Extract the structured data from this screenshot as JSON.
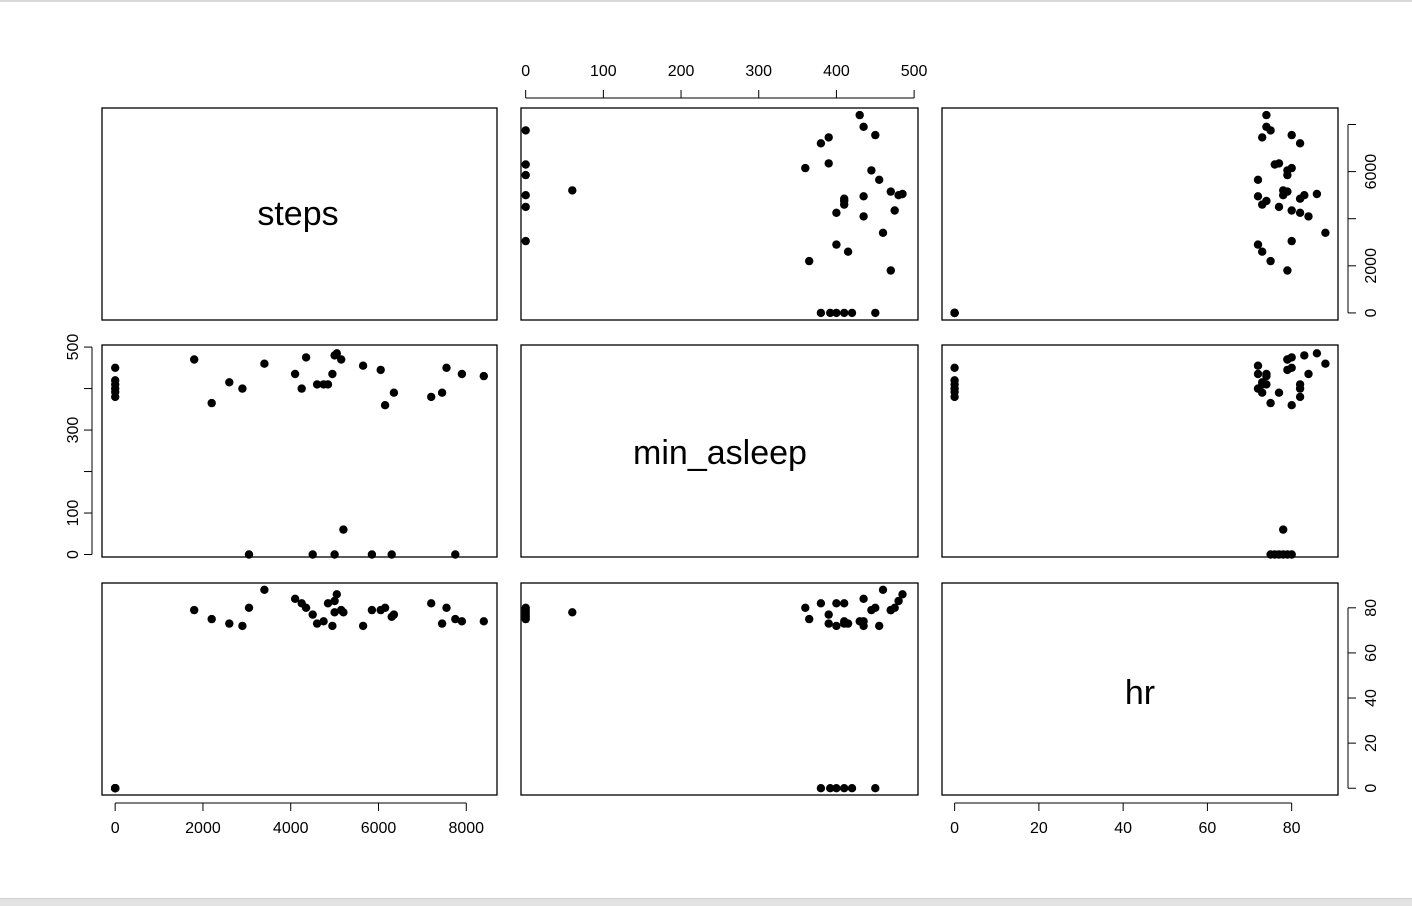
{
  "chart_data": {
    "type": "scatter",
    "variables": [
      "steps",
      "min_asleep",
      "hr"
    ],
    "point_color": "#000000",
    "axes": {
      "steps": {
        "range": [
          -300,
          8700
        ],
        "ticks": [
          0,
          2000,
          4000,
          6000,
          8000
        ]
      },
      "min_asleep": {
        "range": [
          -6,
          505
        ],
        "ticks": [
          0,
          100,
          200,
          300,
          400,
          500
        ],
        "left_ticks": [
          0,
          100,
          300,
          500
        ],
        "left_minor": [
          200,
          400
        ]
      },
      "hr": {
        "range": [
          -3,
          91
        ],
        "ticks": [
          0,
          20,
          40,
          60,
          80
        ]
      },
      "steps_right": {
        "ticks": [
          0,
          2000,
          4000,
          6000,
          8000
        ],
        "labeled": [
          0,
          2000,
          6000
        ]
      }
    },
    "observations": [
      {
        "steps": 0,
        "min_asleep": 380,
        "hr": 0
      },
      {
        "steps": 0,
        "min_asleep": 400,
        "hr": 0
      },
      {
        "steps": 0,
        "min_asleep": 410,
        "hr": 0
      },
      {
        "steps": 0,
        "min_asleep": 420,
        "hr": 0
      },
      {
        "steps": 0,
        "min_asleep": 450,
        "hr": 0
      },
      {
        "steps": 0,
        "min_asleep": 392,
        "hr": 0
      },
      {
        "steps": 1800,
        "min_asleep": 470,
        "hr": 79
      },
      {
        "steps": 2200,
        "min_asleep": 365,
        "hr": 75
      },
      {
        "steps": 2600,
        "min_asleep": 415,
        "hr": 73
      },
      {
        "steps": 2900,
        "min_asleep": 400,
        "hr": 72
      },
      {
        "steps": 3050,
        "min_asleep": 0,
        "hr": 80
      },
      {
        "steps": 3400,
        "min_asleep": 460,
        "hr": 88
      },
      {
        "steps": 4100,
        "min_asleep": 435,
        "hr": 84
      },
      {
        "steps": 4250,
        "min_asleep": 400,
        "hr": 82
      },
      {
        "steps": 4350,
        "min_asleep": 475,
        "hr": 80
      },
      {
        "steps": 4500,
        "min_asleep": 0,
        "hr": 77
      },
      {
        "steps": 4600,
        "min_asleep": 410,
        "hr": 73
      },
      {
        "steps": 4750,
        "min_asleep": 410,
        "hr": 74
      },
      {
        "steps": 4850,
        "min_asleep": 410,
        "hr": 82
      },
      {
        "steps": 4950,
        "min_asleep": 435,
        "hr": 72
      },
      {
        "steps": 5000,
        "min_asleep": 480,
        "hr": 83
      },
      {
        "steps": 5000,
        "min_asleep": 0,
        "hr": 78
      },
      {
        "steps": 5050,
        "min_asleep": 485,
        "hr": 86
      },
      {
        "steps": 5150,
        "min_asleep": 470,
        "hr": 79
      },
      {
        "steps": 5200,
        "min_asleep": 60,
        "hr": 78
      },
      {
        "steps": 5650,
        "min_asleep": 455,
        "hr": 72
      },
      {
        "steps": 5850,
        "min_asleep": 0,
        "hr": 79
      },
      {
        "steps": 6050,
        "min_asleep": 445,
        "hr": 79
      },
      {
        "steps": 6150,
        "min_asleep": 360,
        "hr": 80
      },
      {
        "steps": 6300,
        "min_asleep": 0,
        "hr": 76
      },
      {
        "steps": 6350,
        "min_asleep": 390,
        "hr": 77
      },
      {
        "steps": 7200,
        "min_asleep": 380,
        "hr": 82
      },
      {
        "steps": 7450,
        "min_asleep": 390,
        "hr": 73
      },
      {
        "steps": 7550,
        "min_asleep": 450,
        "hr": 80
      },
      {
        "steps": 7750,
        "min_asleep": 0,
        "hr": 75
      },
      {
        "steps": 7900,
        "min_asleep": 435,
        "hr": 74
      },
      {
        "steps": 8400,
        "min_asleep": 430,
        "hr": 74
      }
    ]
  }
}
